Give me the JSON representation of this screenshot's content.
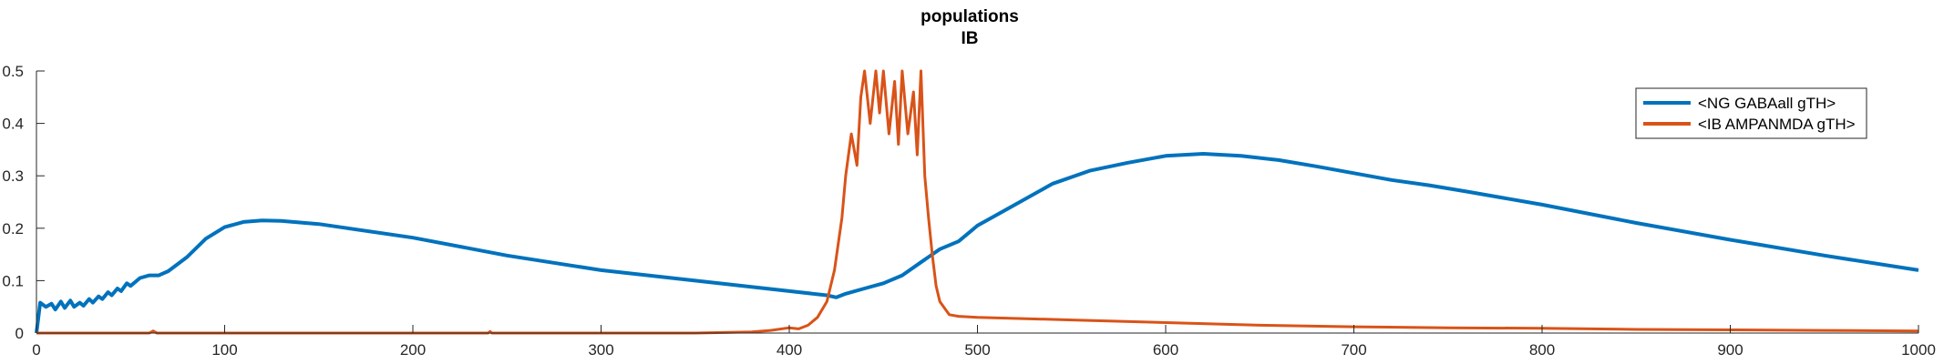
{
  "chart_data": {
    "type": "line",
    "title": [
      "populations",
      "IB"
    ],
    "xlabel": "",
    "ylabel": "",
    "xlim": [
      0,
      1000
    ],
    "ylim": [
      0,
      0.5
    ],
    "xticks": [
      0,
      100,
      200,
      300,
      400,
      500,
      600,
      700,
      800,
      900,
      1000
    ],
    "yticks": [
      0,
      0.1,
      0.2,
      0.3,
      0.4,
      0.5
    ],
    "ytick_labels": [
      "0",
      "0.1",
      "0.2",
      "0.3",
      "0.4",
      "0.5"
    ],
    "grid": false,
    "legend_position": "top-right",
    "series": [
      {
        "name": "<NG GABAall gTH>",
        "color": "#0072BD",
        "x": [
          0,
          2,
          5,
          8,
          10,
          13,
          15,
          18,
          20,
          23,
          25,
          28,
          30,
          33,
          35,
          38,
          40,
          43,
          45,
          48,
          50,
          55,
          60,
          65,
          70,
          80,
          90,
          100,
          110,
          120,
          130,
          150,
          200,
          250,
          300,
          350,
          400,
          420,
          425,
          430,
          440,
          450,
          460,
          470,
          480,
          490,
          500,
          510,
          520,
          540,
          560,
          580,
          600,
          620,
          640,
          660,
          680,
          700,
          720,
          740,
          760,
          800,
          850,
          900,
          950,
          1000
        ],
        "y": [
          0.0,
          0.058,
          0.05,
          0.056,
          0.045,
          0.06,
          0.048,
          0.062,
          0.05,
          0.058,
          0.052,
          0.065,
          0.058,
          0.07,
          0.065,
          0.078,
          0.072,
          0.085,
          0.08,
          0.095,
          0.09,
          0.105,
          0.11,
          0.11,
          0.118,
          0.145,
          0.18,
          0.202,
          0.212,
          0.215,
          0.214,
          0.208,
          0.182,
          0.148,
          0.12,
          0.1,
          0.08,
          0.072,
          0.068,
          0.075,
          0.085,
          0.095,
          0.11,
          0.135,
          0.16,
          0.175,
          0.205,
          0.225,
          0.245,
          0.285,
          0.31,
          0.325,
          0.338,
          0.342,
          0.338,
          0.33,
          0.318,
          0.305,
          0.292,
          0.282,
          0.27,
          0.245,
          0.21,
          0.178,
          0.148,
          0.12
        ]
      },
      {
        "name": "<IB AMPANMDA gTH>",
        "color": "#D95319",
        "x": [
          0,
          60,
          62,
          64,
          100,
          200,
          240,
          241,
          242,
          300,
          350,
          380,
          390,
          400,
          405,
          410,
          415,
          420,
          424,
          428,
          430,
          433,
          436,
          438,
          440,
          443,
          446,
          448,
          450,
          453,
          456,
          458,
          460,
          463,
          466,
          468,
          470,
          472,
          474,
          476,
          478,
          480,
          485,
          490,
          500,
          550,
          600,
          650,
          700,
          750,
          800,
          850,
          900,
          950,
          1000
        ],
        "y": [
          0.0,
          0.0,
          0.004,
          0.0,
          0.0,
          0.0,
          0.0,
          0.003,
          0.0,
          0.0,
          0.0,
          0.002,
          0.005,
          0.01,
          0.008,
          0.015,
          0.03,
          0.06,
          0.12,
          0.22,
          0.3,
          0.38,
          0.32,
          0.45,
          0.5,
          0.4,
          0.5,
          0.42,
          0.5,
          0.38,
          0.48,
          0.36,
          0.5,
          0.38,
          0.46,
          0.34,
          0.5,
          0.3,
          0.22,
          0.15,
          0.09,
          0.06,
          0.035,
          0.032,
          0.03,
          0.025,
          0.02,
          0.015,
          0.012,
          0.01,
          0.009,
          0.007,
          0.006,
          0.005,
          0.004
        ]
      }
    ]
  }
}
